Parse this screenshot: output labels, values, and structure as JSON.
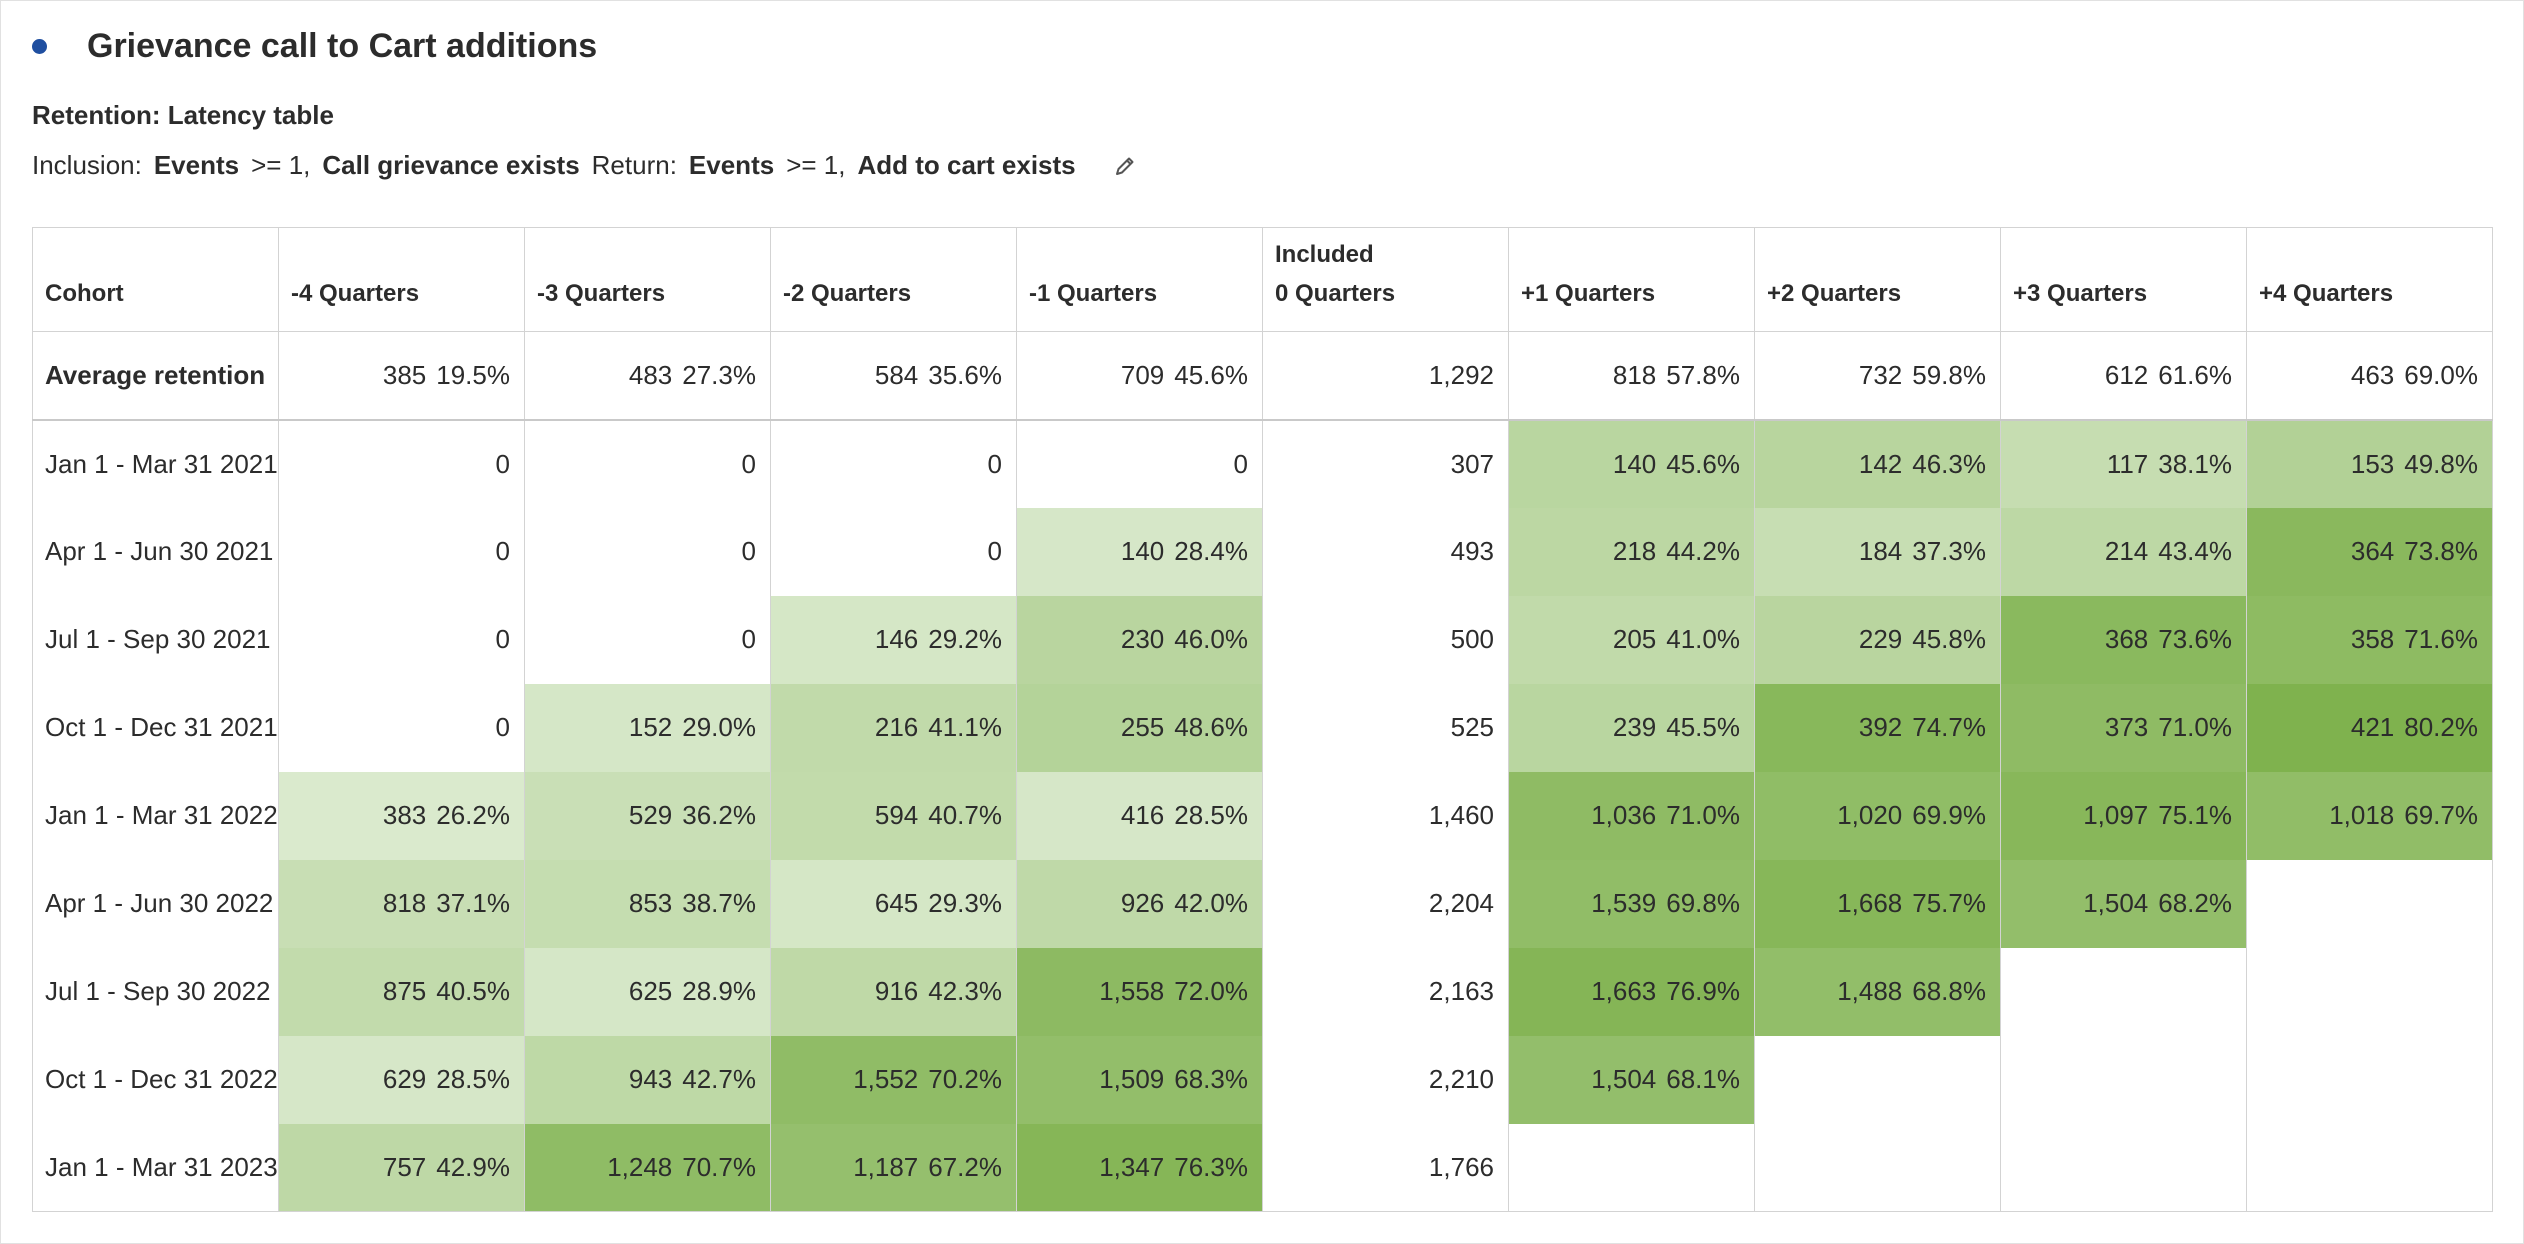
{
  "panel": {
    "title": "Grievance call to Cart additions",
    "subtitle": "Retention: Latency table",
    "criteria": {
      "inclusion_label": "Inclusion:",
      "inclusion_metric": "Events",
      "inclusion_op": ">= 1,",
      "inclusion_dim": "Call grievance exists",
      "return_label": "Return:",
      "return_metric": "Events",
      "return_op": ">= 1,",
      "return_dim": "Add to cart exists"
    },
    "icons": {
      "bullet": "status-dot-icon",
      "edit": "pencil-icon"
    }
  },
  "table": {
    "headers": [
      {
        "line1": "",
        "line2": "Cohort"
      },
      {
        "line1": "",
        "line2": "-4 Quarters"
      },
      {
        "line1": "",
        "line2": "-3 Quarters"
      },
      {
        "line1": "",
        "line2": "-2 Quarters"
      },
      {
        "line1": "",
        "line2": "-1 Quarters"
      },
      {
        "line1": "Included",
        "line2": "0 Quarters"
      },
      {
        "line1": "",
        "line2": "+1 Quarters"
      },
      {
        "line1": "",
        "line2": "+2 Quarters"
      },
      {
        "line1": "",
        "line2": "+3 Quarters"
      },
      {
        "line1": "",
        "line2": "+4 Quarters"
      }
    ],
    "average": {
      "label": "Average retention",
      "cells": [
        {
          "v": "385",
          "p": "19.5%"
        },
        {
          "v": "483",
          "p": "27.3%"
        },
        {
          "v": "584",
          "p": "35.6%"
        },
        {
          "v": "709",
          "p": "45.6%"
        },
        {
          "v": "1,292",
          "p": ""
        },
        {
          "v": "818",
          "p": "57.8%"
        },
        {
          "v": "732",
          "p": "59.8%"
        },
        {
          "v": "612",
          "p": "61.6%"
        },
        {
          "v": "463",
          "p": "69.0%"
        }
      ]
    },
    "rows": [
      {
        "cohort": "Jan 1 - Mar 31 2021",
        "cells": [
          {
            "v": "0",
            "p": ""
          },
          {
            "v": "0",
            "p": ""
          },
          {
            "v": "0",
            "p": ""
          },
          {
            "v": "0",
            "p": ""
          },
          {
            "v": "307",
            "p": ""
          },
          {
            "v": "140",
            "p": "45.6%"
          },
          {
            "v": "142",
            "p": "46.3%"
          },
          {
            "v": "117",
            "p": "38.1%"
          },
          {
            "v": "153",
            "p": "49.8%"
          }
        ]
      },
      {
        "cohort": "Apr 1 - Jun 30 2021",
        "cells": [
          {
            "v": "0",
            "p": ""
          },
          {
            "v": "0",
            "p": ""
          },
          {
            "v": "0",
            "p": ""
          },
          {
            "v": "140",
            "p": "28.4%"
          },
          {
            "v": "493",
            "p": ""
          },
          {
            "v": "218",
            "p": "44.2%"
          },
          {
            "v": "184",
            "p": "37.3%"
          },
          {
            "v": "214",
            "p": "43.4%"
          },
          {
            "v": "364",
            "p": "73.8%"
          }
        ]
      },
      {
        "cohort": "Jul 1 - Sep 30 2021",
        "cells": [
          {
            "v": "0",
            "p": ""
          },
          {
            "v": "0",
            "p": ""
          },
          {
            "v": "146",
            "p": "29.2%"
          },
          {
            "v": "230",
            "p": "46.0%"
          },
          {
            "v": "500",
            "p": ""
          },
          {
            "v": "205",
            "p": "41.0%"
          },
          {
            "v": "229",
            "p": "45.8%"
          },
          {
            "v": "368",
            "p": "73.6%"
          },
          {
            "v": "358",
            "p": "71.6%"
          }
        ]
      },
      {
        "cohort": "Oct 1 - Dec 31 2021",
        "cells": [
          {
            "v": "0",
            "p": ""
          },
          {
            "v": "152",
            "p": "29.0%"
          },
          {
            "v": "216",
            "p": "41.1%"
          },
          {
            "v": "255",
            "p": "48.6%"
          },
          {
            "v": "525",
            "p": ""
          },
          {
            "v": "239",
            "p": "45.5%"
          },
          {
            "v": "392",
            "p": "74.7%"
          },
          {
            "v": "373",
            "p": "71.0%"
          },
          {
            "v": "421",
            "p": "80.2%"
          }
        ]
      },
      {
        "cohort": "Jan 1 - Mar 31 2022",
        "cells": [
          {
            "v": "383",
            "p": "26.2%"
          },
          {
            "v": "529",
            "p": "36.2%"
          },
          {
            "v": "594",
            "p": "40.7%"
          },
          {
            "v": "416",
            "p": "28.5%"
          },
          {
            "v": "1,460",
            "p": ""
          },
          {
            "v": "1,036",
            "p": "71.0%"
          },
          {
            "v": "1,020",
            "p": "69.9%"
          },
          {
            "v": "1,097",
            "p": "75.1%"
          },
          {
            "v": "1,018",
            "p": "69.7%"
          }
        ]
      },
      {
        "cohort": "Apr 1 - Jun 30 2022",
        "cells": [
          {
            "v": "818",
            "p": "37.1%"
          },
          {
            "v": "853",
            "p": "38.7%"
          },
          {
            "v": "645",
            "p": "29.3%"
          },
          {
            "v": "926",
            "p": "42.0%"
          },
          {
            "v": "2,204",
            "p": ""
          },
          {
            "v": "1,539",
            "p": "69.8%"
          },
          {
            "v": "1,668",
            "p": "75.7%"
          },
          {
            "v": "1,504",
            "p": "68.2%"
          },
          {
            "v": "",
            "p": ""
          }
        ]
      },
      {
        "cohort": "Jul 1 - Sep 30 2022",
        "cells": [
          {
            "v": "875",
            "p": "40.5%"
          },
          {
            "v": "625",
            "p": "28.9%"
          },
          {
            "v": "916",
            "p": "42.3%"
          },
          {
            "v": "1,558",
            "p": "72.0%"
          },
          {
            "v": "2,163",
            "p": ""
          },
          {
            "v": "1,663",
            "p": "76.9%"
          },
          {
            "v": "1,488",
            "p": "68.8%"
          },
          {
            "v": "",
            "p": ""
          },
          {
            "v": "",
            "p": ""
          }
        ]
      },
      {
        "cohort": "Oct 1 - Dec 31 2022",
        "cells": [
          {
            "v": "629",
            "p": "28.5%"
          },
          {
            "v": "943",
            "p": "42.7%"
          },
          {
            "v": "1,552",
            "p": "70.2%"
          },
          {
            "v": "1,509",
            "p": "68.3%"
          },
          {
            "v": "2,210",
            "p": ""
          },
          {
            "v": "1,504",
            "p": "68.1%"
          },
          {
            "v": "",
            "p": ""
          },
          {
            "v": "",
            "p": ""
          },
          {
            "v": "",
            "p": ""
          }
        ]
      },
      {
        "cohort": "Jan 1 - Mar 31 2023",
        "cells": [
          {
            "v": "757",
            "p": "42.9%"
          },
          {
            "v": "1,248",
            "p": "70.7%"
          },
          {
            "v": "1,187",
            "p": "67.2%"
          },
          {
            "v": "1,347",
            "p": "76.3%"
          },
          {
            "v": "1,766",
            "p": ""
          },
          {
            "v": "",
            "p": ""
          },
          {
            "v": "",
            "p": ""
          },
          {
            "v": "",
            "p": ""
          },
          {
            "v": "",
            "p": ""
          }
        ]
      }
    ]
  },
  "colors": {
    "accent_dot": "#1f4fa0",
    "heat_low": "#dcebd0",
    "heat_high": "#7cb04a",
    "border": "#d3d3d3"
  }
}
